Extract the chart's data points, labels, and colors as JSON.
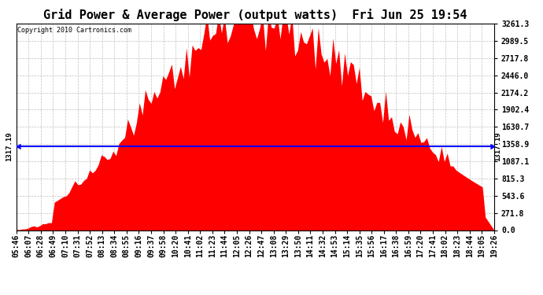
{
  "title": "Grid Power & Average Power (output watts)  Fri Jun 25 19:54",
  "copyright": "Copyright 2010 Cartronics.com",
  "yticks": [
    0.0,
    271.8,
    543.6,
    815.3,
    1087.1,
    1358.9,
    1630.7,
    1902.4,
    2174.2,
    2446.0,
    2717.8,
    2989.5,
    3261.3
  ],
  "ymax": 3261.3,
  "average_line": 1317.19,
  "avg_label": "1317.19",
  "fill_color": "#FF0000",
  "line_color": "#0000FF",
  "bg_color": "#FFFFFF",
  "plot_bg_color": "#FFFFFF",
  "grid_color": "#B0B0B0",
  "title_fontsize": 11,
  "tick_fontsize": 7,
  "copyright_fontsize": 6
}
